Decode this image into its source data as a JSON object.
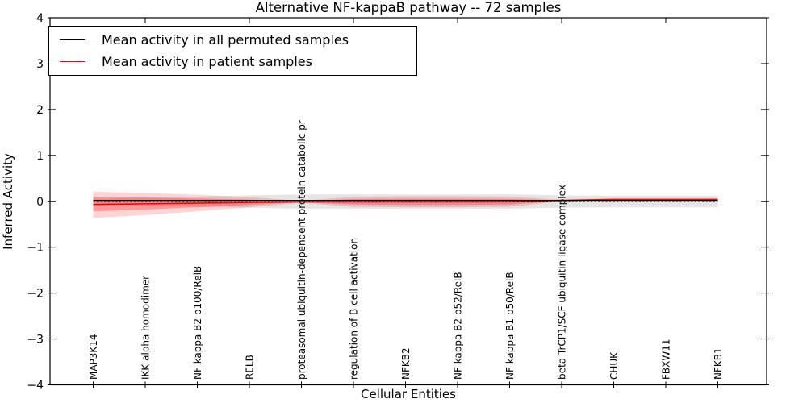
{
  "chart_data": {
    "type": "line",
    "title": "Alternative NF-kappaB pathway -- 72 samples",
    "xlabel": "Cellular Entities",
    "ylabel": "Inferred Activity",
    "ylim": [
      -4,
      4
    ],
    "ytick_labels": [
      "4",
      "3",
      "2",
      "1",
      "0",
      "−1",
      "−2",
      "−3",
      "−4"
    ],
    "grid": false,
    "legend_position": "upper left",
    "categories": [
      "MAP3K14",
      "IKK alpha homodimer",
      "NF kappa B2 p100/RelB",
      "RELB",
      "proteasomal ubiquitin-dependent protein catabolic pr",
      "regulation of B cell activation",
      "NFKB2",
      "NF kappa B2 p52/RelB",
      "NF kappa B1 p50/RelB",
      "beta TrCP1/SCF ubiquitin ligase complex",
      "CHUK",
      "FBXW11",
      "NFKB1"
    ],
    "series": [
      {
        "name": "Mean activity in all permuted samples",
        "color": "#000000",
        "style": "solid",
        "values": [
          0.02,
          0.02,
          0.02,
          0.02,
          0.02,
          0.02,
          0.02,
          0.02,
          0.02,
          0.02,
          0.02,
          0.02,
          0.02
        ]
      },
      {
        "name": "",
        "color": "#000000",
        "style": "dashed",
        "values": [
          -0.01,
          -0.01,
          -0.01,
          -0.01,
          -0.01,
          -0.01,
          -0.01,
          -0.01,
          -0.01,
          -0.01,
          -0.01,
          -0.01,
          -0.01
        ]
      },
      {
        "name": "Mean activity in patient samples",
        "color": "#ff0000",
        "style": "solid",
        "values": [
          -0.07,
          -0.055,
          -0.04,
          -0.025,
          -0.012,
          -0.012,
          -0.012,
          -0.012,
          -0.01,
          0.02,
          0.04,
          0.04,
          0.04
        ]
      }
    ],
    "bands": [
      {
        "name": "permuted-range-band",
        "color": "rgba(0,0,0,0.10)",
        "upper": [
          0.05,
          0.08,
          0.1,
          0.13,
          0.15,
          0.15,
          0.15,
          0.15,
          0.15,
          0.13,
          0.12,
          0.12,
          0.12
        ],
        "lower": [
          -0.06,
          -0.09,
          -0.12,
          -0.14,
          -0.16,
          -0.16,
          -0.16,
          -0.16,
          -0.16,
          -0.14,
          -0.13,
          -0.13,
          -0.13
        ]
      },
      {
        "name": "patient-range-outer-band",
        "color": "rgba(255,0,0,0.17)",
        "upper": [
          0.21,
          0.18,
          0.14,
          0.09,
          0.012,
          0.1,
          0.11,
          0.11,
          0.1,
          0.035,
          0.055,
          0.055,
          0.06
        ],
        "lower": [
          -0.36,
          -0.3,
          -0.22,
          -0.13,
          -0.035,
          -0.12,
          -0.13,
          -0.13,
          -0.12,
          0.0,
          0.02,
          0.02,
          0.02
        ]
      },
      {
        "name": "patient-range-inner-band",
        "color": "rgba(255,0,0,0.28)",
        "upper": [
          0.1,
          0.08,
          0.06,
          0.04,
          0.0,
          0.05,
          0.055,
          0.055,
          0.05,
          0.025,
          0.05,
          0.05,
          0.05
        ],
        "lower": [
          -0.22,
          -0.18,
          -0.13,
          -0.08,
          -0.025,
          -0.07,
          -0.08,
          -0.08,
          -0.07,
          0.005,
          0.03,
          0.03,
          0.03
        ]
      }
    ]
  },
  "legend": {
    "entries": [
      {
        "label": "Mean activity in all permuted samples",
        "color": "#000000"
      },
      {
        "label": "Mean activity in patient samples",
        "color": "#ff0000"
      }
    ]
  }
}
